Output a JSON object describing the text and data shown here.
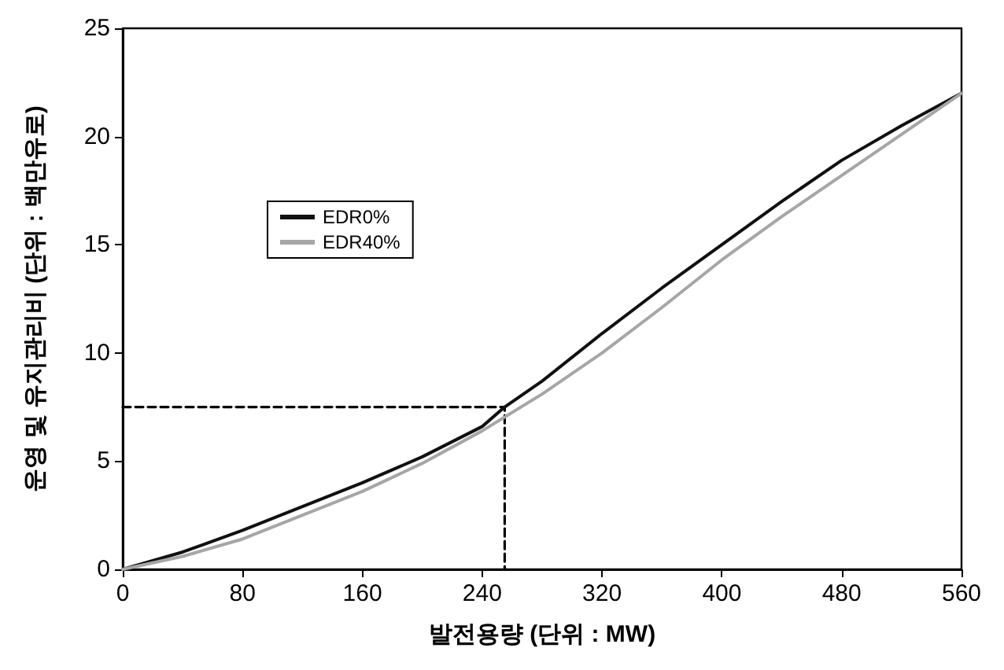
{
  "chart_data": {
    "type": "line",
    "xlabel": "발전용량 (단위 : MW)",
    "ylabel": "운영 및 유지관리비 (단위 : 백만유로)",
    "xlim": [
      0,
      560
    ],
    "xticks": [
      0,
      80,
      160,
      240,
      320,
      400,
      480,
      560
    ],
    "ylim": [
      0,
      25
    ],
    "yticks": [
      0,
      5,
      10,
      15,
      20,
      25
    ],
    "grid": false,
    "legend": "top left",
    "marker": "none",
    "series": [
      {
        "name": "EDR0%",
        "color": "#111111",
        "line_style": "solid",
        "x": [
          0,
          40,
          80,
          120,
          160,
          200,
          240,
          255,
          280,
          320,
          360,
          400,
          440,
          480,
          520,
          560
        ],
        "values": [
          0,
          0.8,
          1.8,
          2.9,
          4.0,
          5.2,
          6.6,
          7.5,
          8.7,
          10.9,
          13.0,
          15.0,
          17.0,
          18.9,
          20.5,
          22.0
        ]
      },
      {
        "name": "EDR40%",
        "color": "#a6a6a6",
        "line_style": "solid",
        "x": [
          0,
          40,
          80,
          120,
          160,
          200,
          240,
          280,
          320,
          360,
          400,
          440,
          480,
          520,
          560
        ],
        "values": [
          0,
          0.6,
          1.4,
          2.5,
          3.6,
          4.9,
          6.4,
          8.1,
          10.0,
          12.1,
          14.3,
          16.3,
          18.2,
          20.1,
          22.0
        ]
      },
      {
        "color": "#000000",
        "line_style": "dashed",
        "x": [
          0,
          255,
          255
        ],
        "values": [
          7.5,
          7.5,
          0
        ]
      }
    ]
  }
}
